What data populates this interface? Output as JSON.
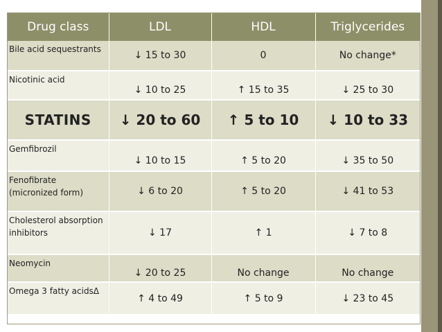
{
  "table": {
    "headers": [
      "Drug class",
      "LDL",
      "HDL",
      "Triglycerides"
    ],
    "rows": [
      {
        "drug": "Bile acid sequestrants",
        "ldl": "↓ 15 to 30",
        "hdl": "0",
        "tg": "No change*"
      },
      {
        "drug": "Nicotinic acid",
        "ldl": "↓ 10 to 25",
        "hdl": "↑ 15 to 35",
        "tg": "↓ 25 to 30"
      },
      {
        "drug": "STATINS",
        "ldl": "↓ 20 to 60",
        "hdl": "↑ 5 to 10",
        "tg": "↓ 10 to 33"
      },
      {
        "drug": "Gemfibrozil",
        "ldl": "↓ 10 to 15",
        "hdl": "↑ 5 to 20",
        "tg": "↓ 35 to 50"
      },
      {
        "drug": "Fenofibrate (micronized form)",
        "ldl": "↓ 6 to 20",
        "hdl": "↑ 5 to 20",
        "tg": "↓ 41 to 53"
      },
      {
        "drug": "Cholesterol absorption inhibitors",
        "ldl": "↓ 17",
        "hdl": "↑ 1",
        "tg": "↓ 7 to 8"
      },
      {
        "drug": "Neomycin",
        "ldl": "↓ 20 to 25",
        "hdl": "No change",
        "tg": "No change"
      },
      {
        "drug": "Omega 3 fatty acidsΔ",
        "ldl": "↑ 4 to 49",
        "hdl": "↑ 5 to 9",
        "tg": "↓ 23 to 45"
      }
    ]
  },
  "colors": {
    "header_bg": "#8d8f68",
    "row_bg": "#dcdcc7",
    "row_alt_bg": "#efefe4",
    "side_bar": "#9a9478"
  }
}
